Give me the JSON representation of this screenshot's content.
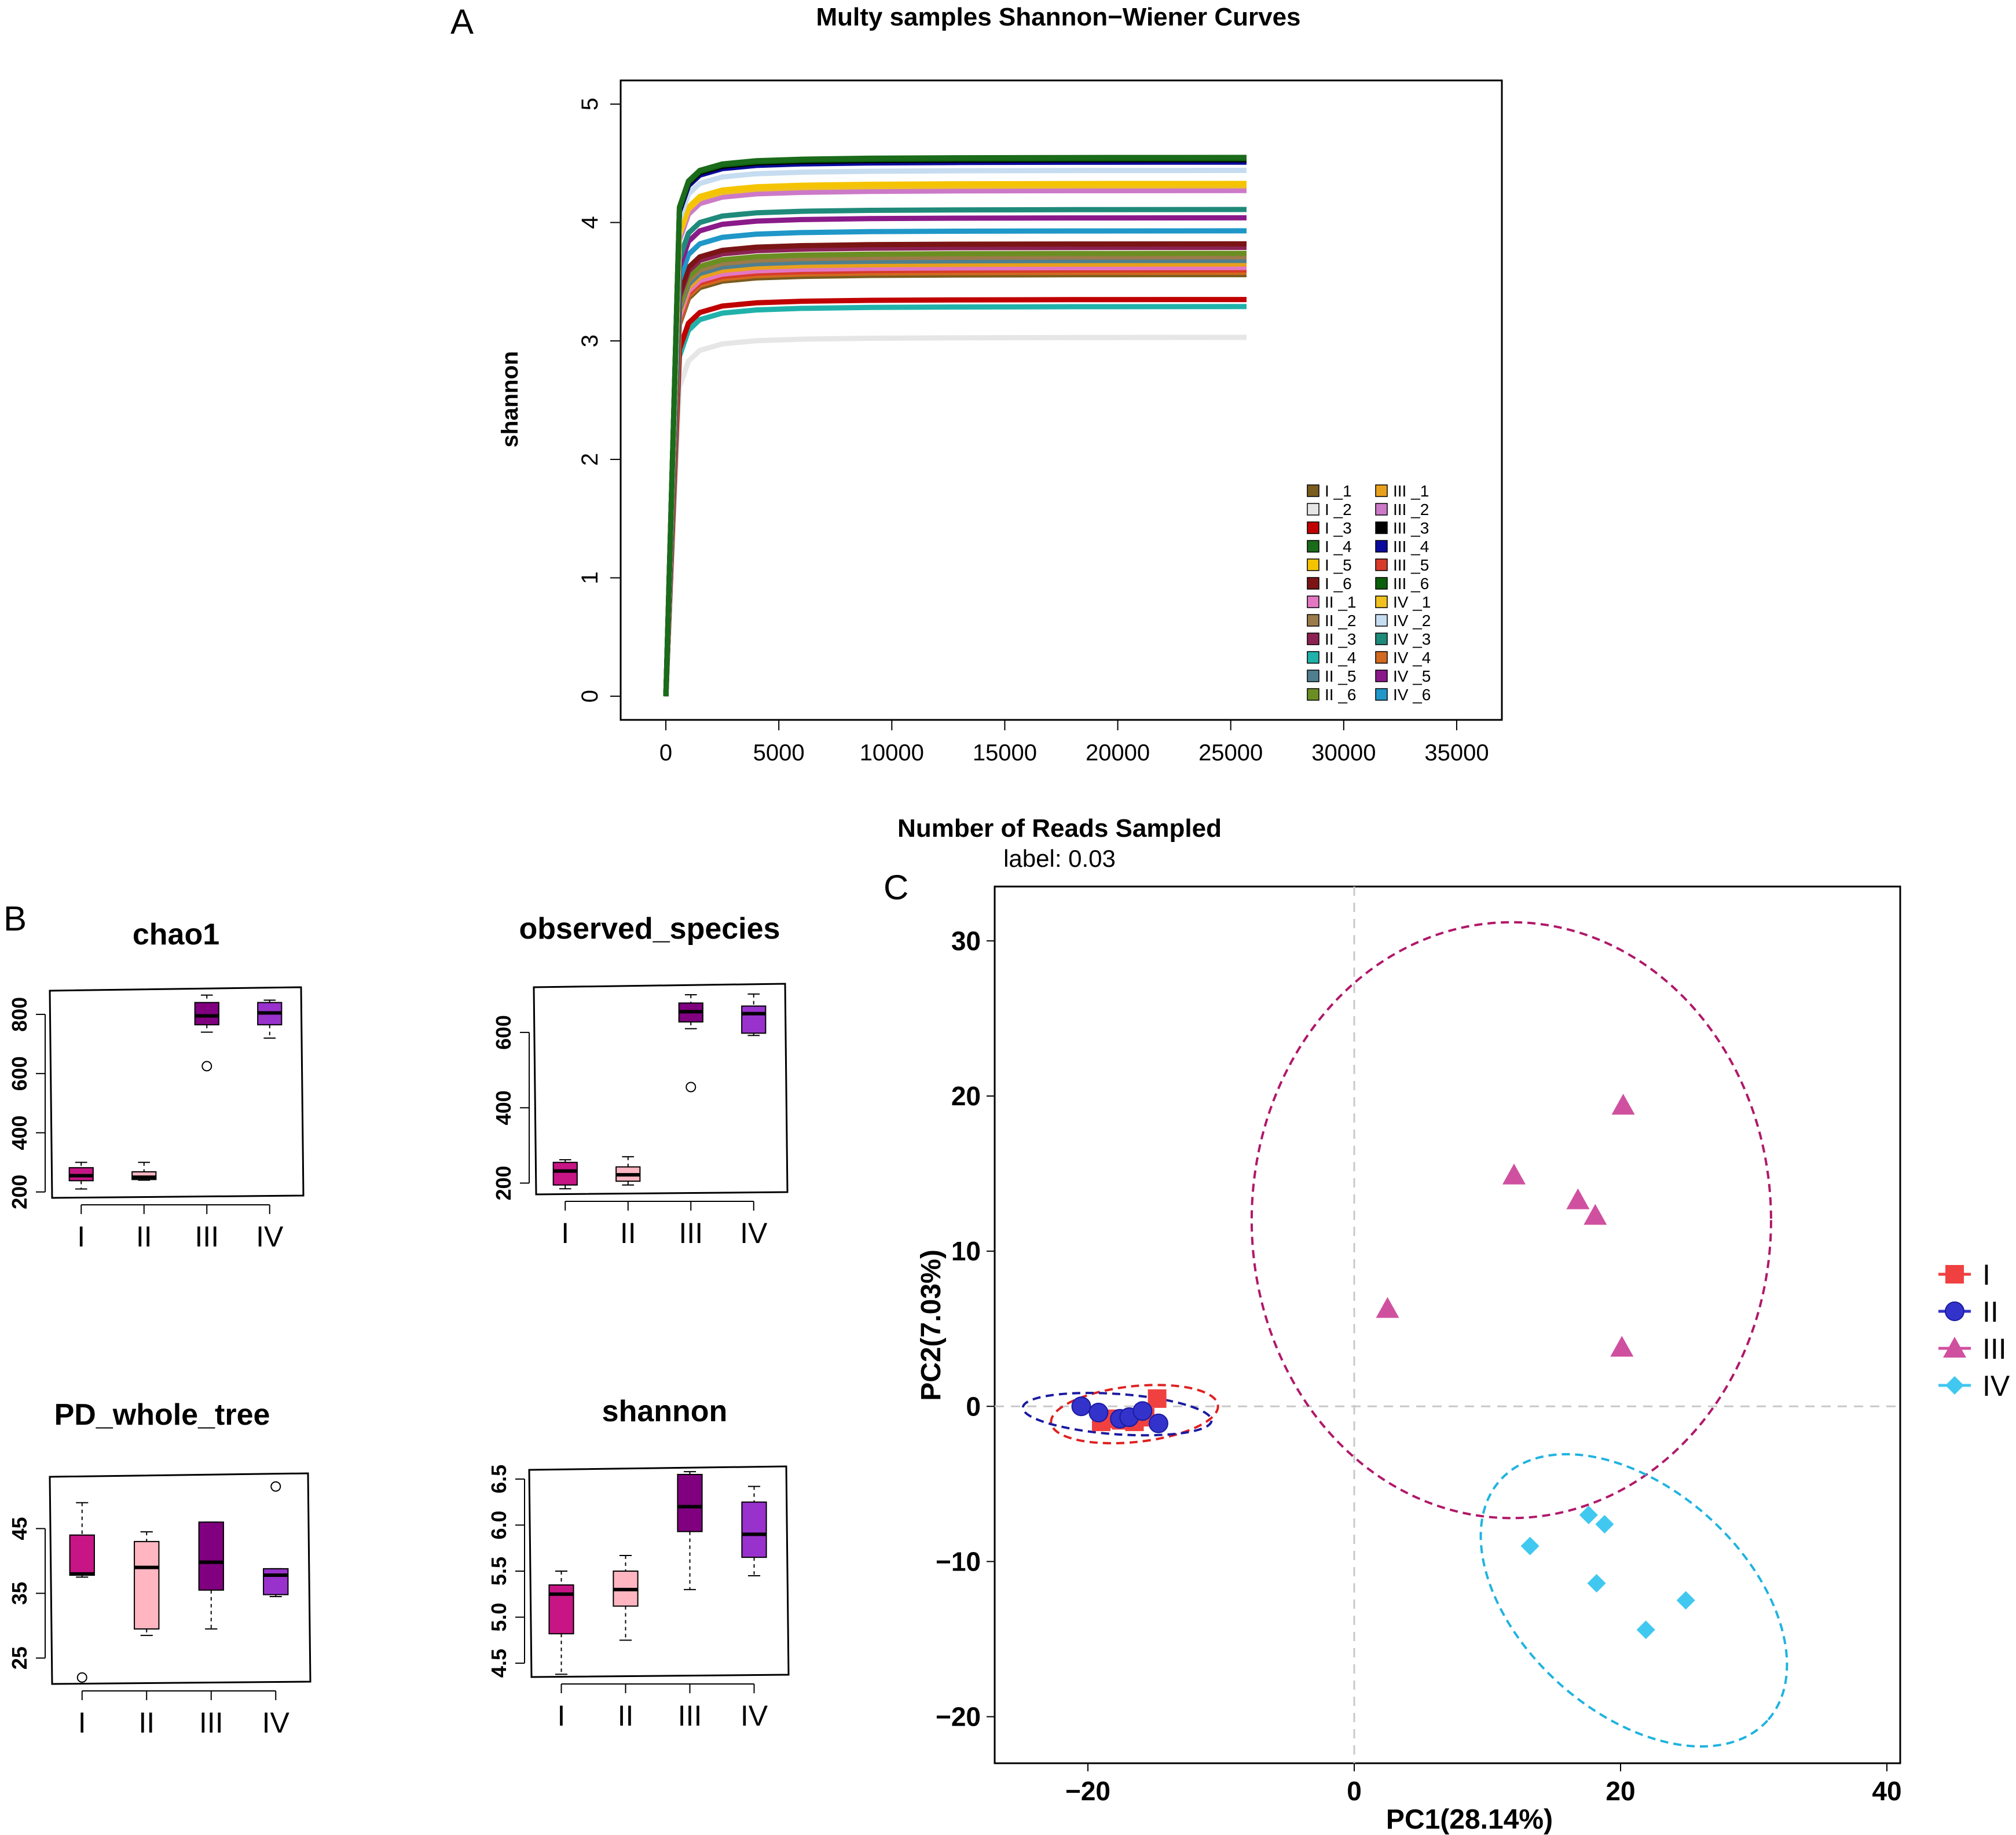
{
  "chart_data": [
    {
      "id": "A",
      "panel_label": "A",
      "type": "line",
      "title": "Multy samples Shannon−Wiener Curves",
      "xlabel": "Number of Reads Sampled",
      "subtitle": "label: 0.03",
      "ylabel": "shannon",
      "xlim": [
        -2000,
        37000
      ],
      "ylim": [
        -0.2,
        5.2
      ],
      "xticks": [
        0,
        5000,
        10000,
        15000,
        20000,
        25000,
        30000,
        35000
      ],
      "xtick_labels": [
        "0",
        "5000",
        "10000",
        "15000",
        "20000",
        "25000",
        "30000",
        "35000"
      ],
      "yticks": [
        0,
        1,
        2,
        3,
        4,
        5
      ],
      "ytick_labels": [
        "0",
        "1",
        "2",
        "3",
        "4",
        "5"
      ],
      "x_max_reads": 25700,
      "legend_position": "bottom-right",
      "series": [
        {
          "name": "I _1",
          "label": "I _1",
          "color": "#7a5c1e",
          "plateau": 3.56
        },
        {
          "name": "I _2",
          "label": "I _2",
          "color": "#e6e6e6",
          "plateau": 3.03
        },
        {
          "name": "I _3",
          "label": "I _3",
          "color": "#c00000",
          "plateau": 3.35
        },
        {
          "name": "I _4",
          "label": "I _4",
          "color": "#1a6b1a",
          "plateau": 4.55
        },
        {
          "name": "I _5",
          "label": "I _5",
          "color": "#f5c400",
          "plateau": 4.33
        },
        {
          "name": "I _6",
          "label": "I _6",
          "color": "#7b1515",
          "plateau": 3.82
        },
        {
          "name": "II _1",
          "label": "II _1",
          "color": "#e377c2",
          "plateau": 3.62
        },
        {
          "name": "II _2",
          "label": "II _2",
          "color": "#9c7b4a",
          "plateau": 3.71
        },
        {
          "name": "II _3",
          "label": "II _3",
          "color": "#8b2252",
          "plateau": 3.79
        },
        {
          "name": "II _4",
          "label": "II _4",
          "color": "#20b2aa",
          "plateau": 3.29
        },
        {
          "name": "II _5",
          "label": "II _5",
          "color": "#4f7f8f",
          "plateau": 3.68
        },
        {
          "name": "II _6",
          "label": "II _6",
          "color": "#6b8e23",
          "plateau": 3.74
        },
        {
          "name": "III _1",
          "label": "III _1",
          "color": "#e8a01c",
          "plateau": 3.65
        },
        {
          "name": "III _2",
          "label": "III _2",
          "color": "#cc79c8",
          "plateau": 4.27
        },
        {
          "name": "III _3",
          "label": "III _3",
          "color": "#000000",
          "plateau": 4.53
        },
        {
          "name": "III _4",
          "label": "III _4",
          "color": "#0a0a9c",
          "plateau": 4.51
        },
        {
          "name": "III _5",
          "label": "III _5",
          "color": "#d83b2b",
          "plateau": 3.6
        },
        {
          "name": "III _6",
          "label": "III _6",
          "color": "#0b5e0b",
          "plateau": 4.54
        },
        {
          "name": "IV _1",
          "label": "IV _1",
          "color": "#f0c020",
          "plateau": 4.31
        },
        {
          "name": "IV _2",
          "label": "IV _2",
          "color": "#c6dcf0",
          "plateau": 4.44
        },
        {
          "name": "IV _3",
          "label": "IV _3",
          "color": "#1f8a7a",
          "plateau": 4.11
        },
        {
          "name": "IV _4",
          "label": "IV _4",
          "color": "#d2691e",
          "plateau": 3.58
        },
        {
          "name": "IV _5",
          "label": "IV _5",
          "color": "#8a1a8a",
          "plateau": 4.04
        },
        {
          "name": "IV _6",
          "label": "IV _6",
          "color": "#1f97c8",
          "plateau": 3.93
        }
      ]
    },
    {
      "id": "B1",
      "panel_label": "B",
      "type": "box",
      "title": "chao1",
      "ylim": [
        180,
        880
      ],
      "yticks": [
        200,
        400,
        600,
        800
      ],
      "ytick_labels": [
        "200",
        "400",
        "600",
        "800"
      ],
      "categories": [
        "I",
        "II",
        "III",
        "IV"
      ],
      "colors": [
        "#c71585",
        "#ffb6c1",
        "#800080",
        "#9932cc"
      ],
      "boxes": [
        {
          "min": 210,
          "q1": 238,
          "median": 255,
          "q3": 282,
          "max": 300,
          "outliers": []
        },
        {
          "min": 240,
          "q1": 242,
          "median": 250,
          "q3": 268,
          "max": 300,
          "outliers": []
        },
        {
          "min": 740,
          "q1": 765,
          "median": 795,
          "q3": 840,
          "max": 865,
          "outliers": [
            625
          ]
        },
        {
          "min": 720,
          "q1": 765,
          "median": 805,
          "q3": 840,
          "max": 848,
          "outliers": []
        }
      ]
    },
    {
      "id": "B2",
      "type": "box",
      "title": "observed_species",
      "ylim": [
        170,
        720
      ],
      "yticks": [
        200,
        400,
        600
      ],
      "ytick_labels": [
        "200",
        "400",
        "600"
      ],
      "categories": [
        "I",
        "II",
        "III",
        "IV"
      ],
      "colors": [
        "#c71585",
        "#ffb6c1",
        "#800080",
        "#9932cc"
      ],
      "boxes": [
        {
          "min": 185,
          "q1": 195,
          "median": 232,
          "q3": 255,
          "max": 262,
          "outliers": []
        },
        {
          "min": 195,
          "q1": 205,
          "median": 222,
          "q3": 243,
          "max": 270,
          "outliers": []
        },
        {
          "min": 610,
          "q1": 628,
          "median": 655,
          "q3": 678,
          "max": 700,
          "outliers": [
            455
          ]
        },
        {
          "min": 592,
          "q1": 598,
          "median": 650,
          "q3": 670,
          "max": 702,
          "outliers": []
        }
      ]
    },
    {
      "id": "B3",
      "type": "box",
      "title": "PD_whole_tree",
      "ylim": [
        21,
        53
      ],
      "yticks": [
        25,
        35,
        45
      ],
      "ytick_labels": [
        "25",
        "35",
        "45"
      ],
      "categories": [
        "I",
        "II",
        "III",
        "IV"
      ],
      "colors": [
        "#c71585",
        "#ffb6c1",
        "#800080",
        "#9932cc"
      ],
      "boxes": [
        {
          "min": 37.5,
          "q1": 37.8,
          "median": 38.0,
          "q3": 44.0,
          "max": 49.0,
          "outliers": [
            22.0
          ]
        },
        {
          "min": 28.5,
          "q1": 29.5,
          "median": 39.0,
          "q3": 43.0,
          "max": 44.5,
          "outliers": []
        },
        {
          "min": 29.5,
          "q1": 35.5,
          "median": 39.8,
          "q3": 46.0,
          "max": 46.0,
          "outliers": []
        },
        {
          "min": 34.5,
          "q1": 34.8,
          "median": 37.8,
          "q3": 38.8,
          "max": 38.8,
          "outliers": [
            51.5
          ]
        }
      ]
    },
    {
      "id": "B4",
      "type": "box",
      "title": "shannon",
      "ylim": [
        4.35,
        6.6
      ],
      "yticks": [
        4.5,
        5.0,
        5.5,
        6.0,
        6.5
      ],
      "ytick_labels": [
        "4.5",
        "5.0",
        "5.5",
        "6.0",
        "6.5"
      ],
      "categories": [
        "I",
        "II",
        "III",
        "IV"
      ],
      "colors": [
        "#c71585",
        "#ffb6c1",
        "#800080",
        "#9932cc"
      ],
      "boxes": [
        {
          "min": 4.38,
          "q1": 4.82,
          "median": 5.25,
          "q3": 5.35,
          "max": 5.5,
          "outliers": []
        },
        {
          "min": 4.75,
          "q1": 5.12,
          "median": 5.3,
          "q3": 5.5,
          "max": 5.67,
          "outliers": []
        },
        {
          "min": 5.3,
          "q1": 5.93,
          "median": 6.2,
          "q3": 6.55,
          "max": 6.58,
          "outliers": []
        },
        {
          "min": 5.45,
          "q1": 5.65,
          "median": 5.9,
          "q3": 6.25,
          "max": 6.42,
          "outliers": []
        }
      ]
    },
    {
      "id": "C",
      "panel_label": "C",
      "type": "scatter",
      "xlabel": "PC1(28.14%)",
      "ylabel": "PC2(7.03%)",
      "xlim": [
        -27,
        41
      ],
      "ylim": [
        -23,
        33.5
      ],
      "xticks": [
        -20,
        0,
        20,
        40
      ],
      "xtick_labels": [
        "−20",
        "0",
        "20",
        "40"
      ],
      "yticks": [
        -20,
        -10,
        0,
        10,
        20,
        30
      ],
      "ytick_labels": [
        "−20",
        "−10",
        "0",
        "10",
        "20",
        "30"
      ],
      "legend_position": "right",
      "groups": [
        {
          "name": "I",
          "label": "I",
          "color": "#f04040",
          "shape": "square",
          "points": [
            [
              -19,
              -1.0
            ],
            [
              -18.2,
              -0.8
            ],
            [
              -17.5,
              -0.9
            ],
            [
              -16.5,
              -1.0
            ],
            [
              -15.7,
              -0.7
            ],
            [
              -14.8,
              0.5
            ]
          ],
          "ellipse": {
            "cx": -16.5,
            "cy": -0.5,
            "rx": 6.3,
            "ry": 1.8,
            "angle_deg": 6,
            "color": "#e02020"
          }
        },
        {
          "name": "II",
          "label": "II",
          "color": "#3333cc",
          "shape": "circle",
          "points": [
            [
              -20.5,
              0.0
            ],
            [
              -19.2,
              -0.4
            ],
            [
              -17.6,
              -0.8
            ],
            [
              -16.9,
              -0.7
            ],
            [
              -15.9,
              -0.3
            ],
            [
              -14.7,
              -1.1
            ]
          ],
          "ellipse": {
            "cx": -17.8,
            "cy": -0.5,
            "rx": 7.1,
            "ry": 1.3,
            "angle_deg": -4,
            "color": "#1a1aa0"
          }
        },
        {
          "name": "III",
          "label": "III",
          "color": "#d050a0",
          "shape": "triangle",
          "points": [
            [
              2.5,
              6.3
            ],
            [
              12,
              14.9
            ],
            [
              16.8,
              13.3
            ],
            [
              18.1,
              12.3
            ],
            [
              20.2,
              19.4
            ],
            [
              20.1,
              3.8
            ]
          ],
          "ellipse": {
            "cx": 11.8,
            "cy": 12.0,
            "rx": 19.5,
            "ry": 19.2,
            "angle_deg": 0,
            "color": "#b0186a"
          }
        },
        {
          "name": "IV",
          "label": "IV",
          "color": "#40c8f0",
          "shape": "diamond",
          "points": [
            [
              13.2,
              -9.0
            ],
            [
              17.6,
              -7.0
            ],
            [
              18.8,
              -7.6
            ],
            [
              18.2,
              -11.4
            ],
            [
              21.9,
              -14.4
            ],
            [
              24.9,
              -12.5
            ]
          ],
          "ellipse": {
            "cx": 21,
            "cy": -12.5,
            "rx": 13.5,
            "ry": 7.2,
            "angle_deg": -42,
            "color": "#1fb3e0"
          }
        }
      ]
    }
  ]
}
